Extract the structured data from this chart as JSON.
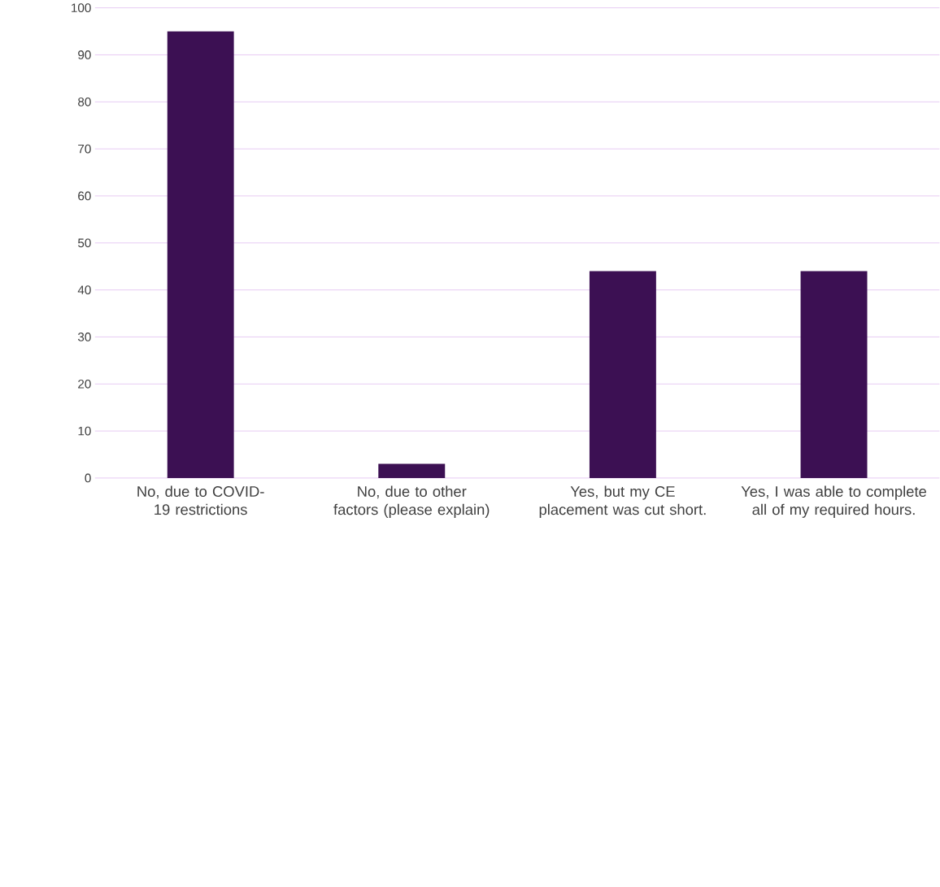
{
  "chart_data": {
    "type": "bar",
    "categories": [
      "No, due to COVID-19 restrictions",
      "No, due to other factors (please explain)",
      "Yes, but my CE placement was cut short.",
      "Yes, I was able to complete all of my required hours."
    ],
    "values": [
      95,
      3,
      44,
      44
    ],
    "color": "#3c1053",
    "ylim": [
      0,
      100
    ],
    "yticks": [
      0,
      10,
      20,
      30,
      40,
      50,
      60,
      70,
      80,
      90,
      100
    ],
    "grid": "y"
  }
}
